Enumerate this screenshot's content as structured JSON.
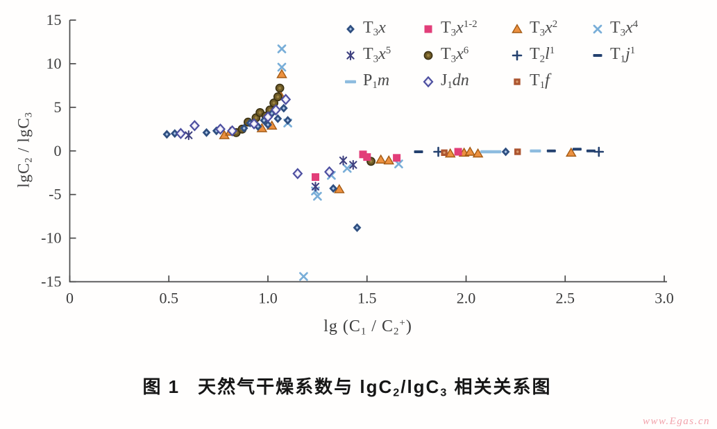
{
  "watermark": "www.Egas.cn",
  "caption": {
    "fig": "图 1",
    "parts": [
      {
        "v": "天然气干燥系数与 lgC",
        "k": "t"
      },
      {
        "v": "2",
        "k": "sub"
      },
      {
        "v": "/lgC",
        "k": "t"
      },
      {
        "v": "3",
        "k": "sub"
      },
      {
        "v": " 相关关系图",
        "k": "t"
      }
    ]
  },
  "chart_data": {
    "type": "scatter",
    "title": "",
    "xlabel": "lg (C1 / C2+)",
    "ylabel": "lgC2 / lgC3",
    "xlabel_parts": [
      {
        "v": "lg (C",
        "k": "t"
      },
      {
        "v": "1",
        "k": "sub"
      },
      {
        "v": " / C",
        "k": "t"
      },
      {
        "v": "2",
        "k": "sub"
      },
      {
        "v": "+",
        "k": "sup"
      },
      {
        "v": ")",
        "k": "t"
      }
    ],
    "ylabel_parts": [
      {
        "v": "lgC",
        "k": "t"
      },
      {
        "v": "2",
        "k": "sub"
      },
      {
        "v": " / lgC",
        "k": "t"
      },
      {
        "v": "3",
        "k": "sub"
      }
    ],
    "xlim": [
      0,
      3.0
    ],
    "ylim": [
      -15,
      15
    ],
    "x_ticks": [
      0,
      0.5,
      1.0,
      1.5,
      2.0,
      2.5,
      3.0
    ],
    "x_tick_labels": [
      "0",
      "0.5",
      "1.0",
      "1.5",
      "2.0",
      "2.5",
      "3.0"
    ],
    "y_ticks": [
      15,
      10,
      5,
      0,
      -5,
      -10,
      -15
    ],
    "y_tick_labels": [
      "15",
      "10",
      "5",
      "0",
      "-5",
      "-10",
      "-15"
    ],
    "grid": false,
    "legend_position": "inside top-right, 3 rows",
    "series": [
      {
        "name": "T3x",
        "marker": "diamond",
        "color": "#2f4f80",
        "center": "#aac4e6",
        "label_parts": [
          {
            "v": "T",
            "k": "t"
          },
          {
            "v": "3",
            "k": "sub"
          },
          {
            "v": "x",
            "k": "i"
          }
        ],
        "points": [
          [
            0.49,
            1.9
          ],
          [
            0.53,
            2.0
          ],
          [
            0.69,
            2.1
          ],
          [
            0.74,
            2.3
          ],
          [
            0.88,
            2.6
          ],
          [
            0.91,
            3.2
          ],
          [
            0.95,
            2.8
          ],
          [
            0.98,
            3.5
          ],
          [
            1.0,
            3.0
          ],
          [
            1.02,
            4.3
          ],
          [
            1.05,
            3.7
          ],
          [
            1.08,
            4.9
          ],
          [
            1.1,
            3.5
          ],
          [
            1.33,
            -4.3
          ],
          [
            1.45,
            -8.8
          ],
          [
            2.2,
            -0.1
          ]
        ]
      },
      {
        "name": "T3x1-2",
        "marker": "square",
        "color": "#e23e79",
        "label_parts": [
          {
            "v": "T",
            "k": "t"
          },
          {
            "v": "3",
            "k": "sub"
          },
          {
            "v": "x",
            "k": "i"
          },
          {
            "v": "1-2",
            "k": "sup"
          }
        ],
        "points": [
          [
            1.24,
            -3.0
          ],
          [
            1.48,
            -0.4
          ],
          [
            1.5,
            -0.7
          ],
          [
            1.65,
            -0.8
          ],
          [
            1.96,
            -0.1
          ]
        ]
      },
      {
        "name": "T3x2",
        "marker": "triangle",
        "color": "#ec9140",
        "edge": "#a35a14",
        "label_parts": [
          {
            "v": "T",
            "k": "t"
          },
          {
            "v": "3",
            "k": "sub"
          },
          {
            "v": "x",
            "k": "i"
          },
          {
            "v": "2",
            "k": "sup"
          }
        ],
        "points": [
          [
            0.78,
            1.8
          ],
          [
            0.81,
            2.2
          ],
          [
            0.97,
            2.6
          ],
          [
            1.02,
            2.9
          ],
          [
            1.06,
            6.5
          ],
          [
            1.07,
            8.8
          ],
          [
            1.36,
            -4.4
          ],
          [
            1.57,
            -1.0
          ],
          [
            1.61,
            -1.1
          ],
          [
            1.92,
            -0.3
          ],
          [
            1.99,
            -0.2
          ],
          [
            2.02,
            -0.1
          ],
          [
            2.06,
            -0.3
          ],
          [
            2.53,
            -0.2
          ]
        ]
      },
      {
        "name": "T3x4",
        "marker": "xmark",
        "color": "#79aed8",
        "label_parts": [
          {
            "v": "T",
            "k": "t"
          },
          {
            "v": "3",
            "k": "sub"
          },
          {
            "v": "x",
            "k": "i"
          },
          {
            "v": "4",
            "k": "sup"
          }
        ],
        "points": [
          [
            1.07,
            11.7
          ],
          [
            1.07,
            9.6
          ],
          [
            1.1,
            3.2
          ],
          [
            1.18,
            -14.4
          ],
          [
            1.24,
            -4.6
          ],
          [
            1.25,
            -5.2
          ],
          [
            1.32,
            -2.8
          ],
          [
            1.4,
            -2.0
          ],
          [
            1.66,
            -1.5
          ]
        ]
      },
      {
        "name": "T3x5",
        "marker": "asterisk",
        "color": "#3f4180",
        "label_parts": [
          {
            "v": "T",
            "k": "t"
          },
          {
            "v": "3",
            "k": "sub"
          },
          {
            "v": "x",
            "k": "i"
          },
          {
            "v": "5",
            "k": "sup"
          }
        ],
        "points": [
          [
            0.6,
            1.8
          ],
          [
            1.24,
            -4.1
          ],
          [
            1.38,
            -1.1
          ],
          [
            1.43,
            -1.6
          ]
        ]
      },
      {
        "name": "T3x6",
        "marker": "circle",
        "color": "#6f5b27",
        "edge": "#3a3012",
        "center": "#9b8240",
        "label_parts": [
          {
            "v": "T",
            "k": "t"
          },
          {
            "v": "3",
            "k": "sub"
          },
          {
            "v": "x",
            "k": "i"
          },
          {
            "v": "6",
            "k": "sup"
          }
        ],
        "points": [
          [
            0.84,
            2.1
          ],
          [
            0.87,
            2.5
          ],
          [
            0.9,
            3.3
          ],
          [
            0.94,
            3.8
          ],
          [
            0.96,
            4.4
          ],
          [
            0.99,
            4.0
          ],
          [
            1.01,
            4.7
          ],
          [
            1.03,
            5.5
          ],
          [
            1.05,
            6.2
          ],
          [
            1.06,
            7.2
          ],
          [
            1.52,
            -1.2
          ]
        ]
      },
      {
        "name": "T2l1",
        "marker": "plus",
        "color": "#24416f",
        "label_parts": [
          {
            "v": "T",
            "k": "t"
          },
          {
            "v": "2",
            "k": "sub"
          },
          {
            "v": "l",
            "k": "i"
          },
          {
            "v": "1",
            "k": "sup"
          }
        ],
        "points": [
          [
            1.86,
            -0.1
          ],
          [
            2.67,
            -0.1
          ]
        ]
      },
      {
        "name": "T1j1",
        "marker": "dash",
        "color": "#24416f",
        "label_parts": [
          {
            "v": "T",
            "k": "t"
          },
          {
            "v": "1",
            "k": "sub"
          },
          {
            "v": "j",
            "k": "i"
          },
          {
            "v": "1",
            "k": "sup"
          }
        ],
        "points": [
          [
            1.76,
            -0.1
          ],
          [
            2.43,
            0.0
          ],
          [
            2.56,
            0.2
          ],
          [
            2.63,
            0.0
          ]
        ]
      },
      {
        "name": "P1m",
        "marker": "ldash",
        "color": "#8ebcdf",
        "label_parts": [
          {
            "v": "P",
            "k": "t"
          },
          {
            "v": "1",
            "k": "sub"
          },
          {
            "v": "m",
            "k": "i"
          }
        ],
        "points": [
          [
            2.1,
            -0.1
          ],
          [
            2.15,
            -0.1
          ],
          [
            2.35,
            0.0
          ]
        ]
      },
      {
        "name": "J1dn",
        "marker": "odiamond",
        "color": "#4d4fa0",
        "fill": "#edeaf7",
        "label_parts": [
          {
            "v": "J",
            "k": "t"
          },
          {
            "v": "1",
            "k": "sub"
          },
          {
            "v": "dn",
            "k": "i"
          }
        ],
        "points": [
          [
            0.56,
            2.0
          ],
          [
            0.63,
            2.9
          ],
          [
            0.76,
            2.5
          ],
          [
            0.82,
            2.3
          ],
          [
            0.93,
            3.1
          ],
          [
            1.0,
            3.9
          ],
          [
            1.04,
            4.7
          ],
          [
            1.09,
            5.9
          ],
          [
            1.15,
            -2.6
          ],
          [
            1.31,
            -2.4
          ]
        ]
      },
      {
        "name": "T1f",
        "marker": "ssquare",
        "color": "#ac5530",
        "center": "#d99a6c",
        "label_parts": [
          {
            "v": "T",
            "k": "t"
          },
          {
            "v": "1",
            "k": "sub"
          },
          {
            "v": "f",
            "k": "i"
          }
        ],
        "points": [
          [
            1.89,
            -0.2
          ],
          [
            2.26,
            -0.1
          ]
        ]
      }
    ]
  }
}
